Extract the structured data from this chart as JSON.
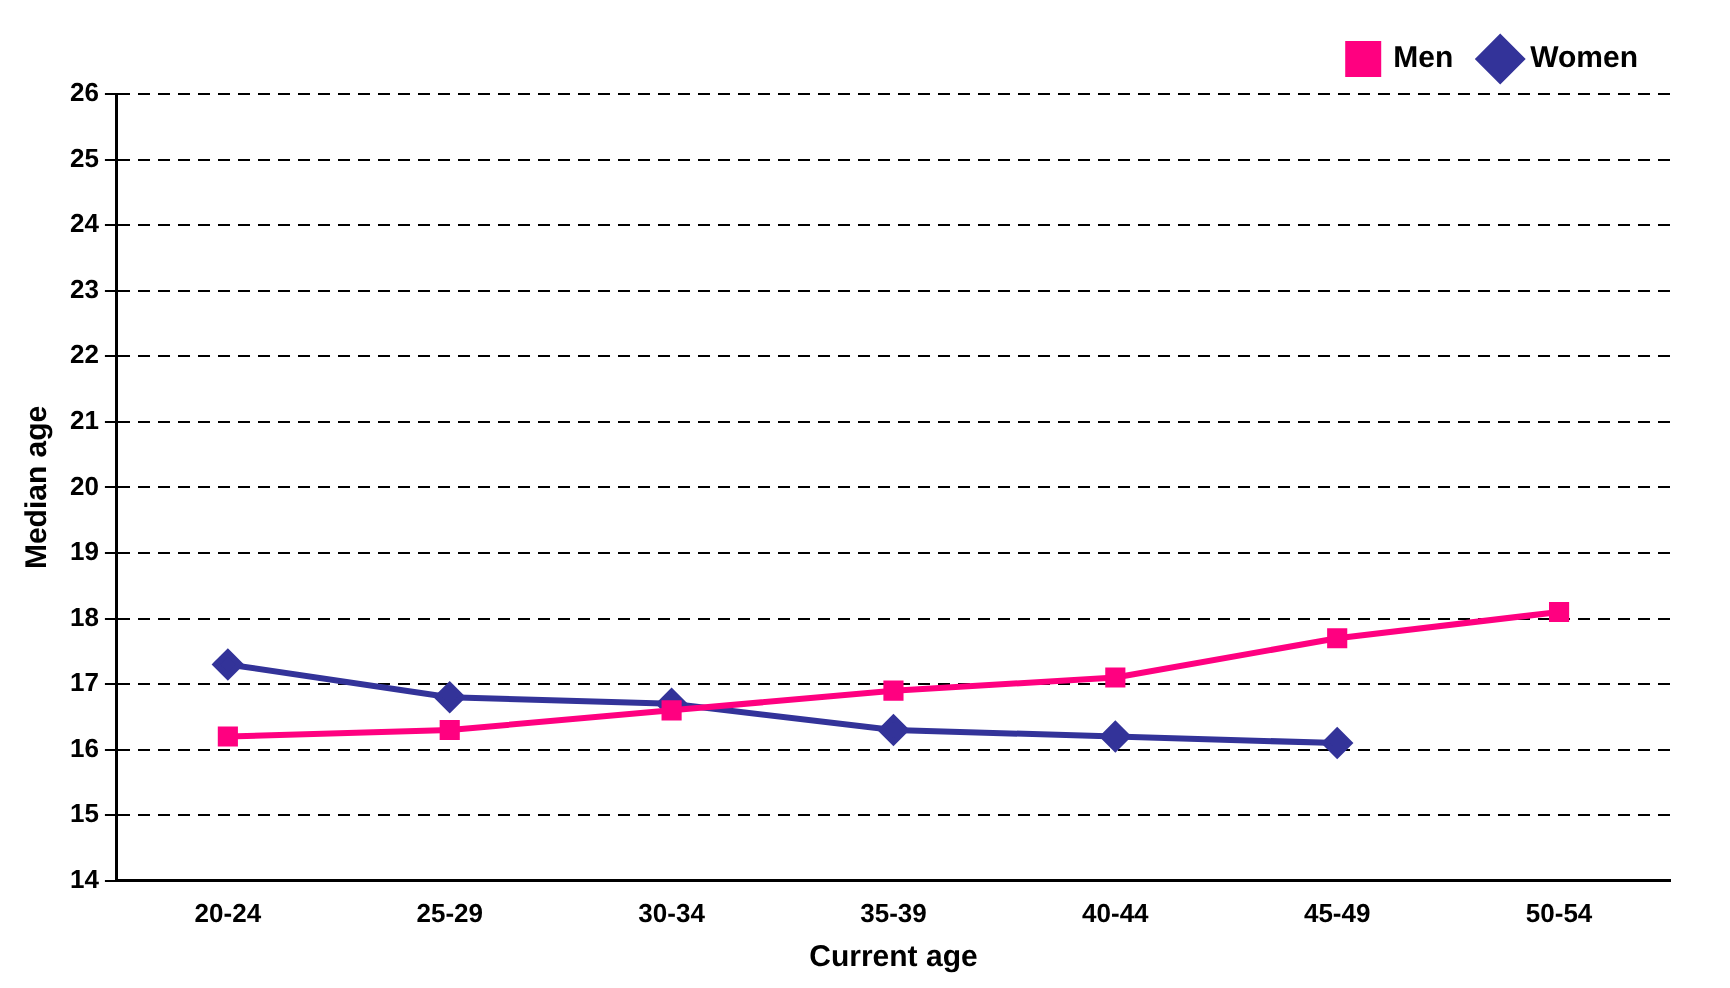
{
  "chart_data": {
    "type": "line",
    "xlabel": "Current age",
    "ylabel": "Median age",
    "categories": [
      "20-24",
      "25-29",
      "30-34",
      "35-39",
      "40-44",
      "45-49",
      "50-54"
    ],
    "series": [
      {
        "name": "Women",
        "color": "#333399",
        "marker": "diamond",
        "values": [
          17.3,
          16.8,
          16.7,
          16.3,
          16.2,
          16.1,
          null
        ]
      },
      {
        "name": "Men",
        "color": "#ff0080",
        "marker": "square",
        "values": [
          16.2,
          16.3,
          16.6,
          16.9,
          17.1,
          17.7,
          18.1
        ]
      }
    ],
    "ylim": [
      14,
      26
    ],
    "yticks": [
      14,
      15,
      16,
      17,
      18,
      19,
      20,
      21,
      22,
      23,
      24,
      25,
      26
    ],
    "grid": "y",
    "line_style": "solid",
    "legend": "top right"
  }
}
